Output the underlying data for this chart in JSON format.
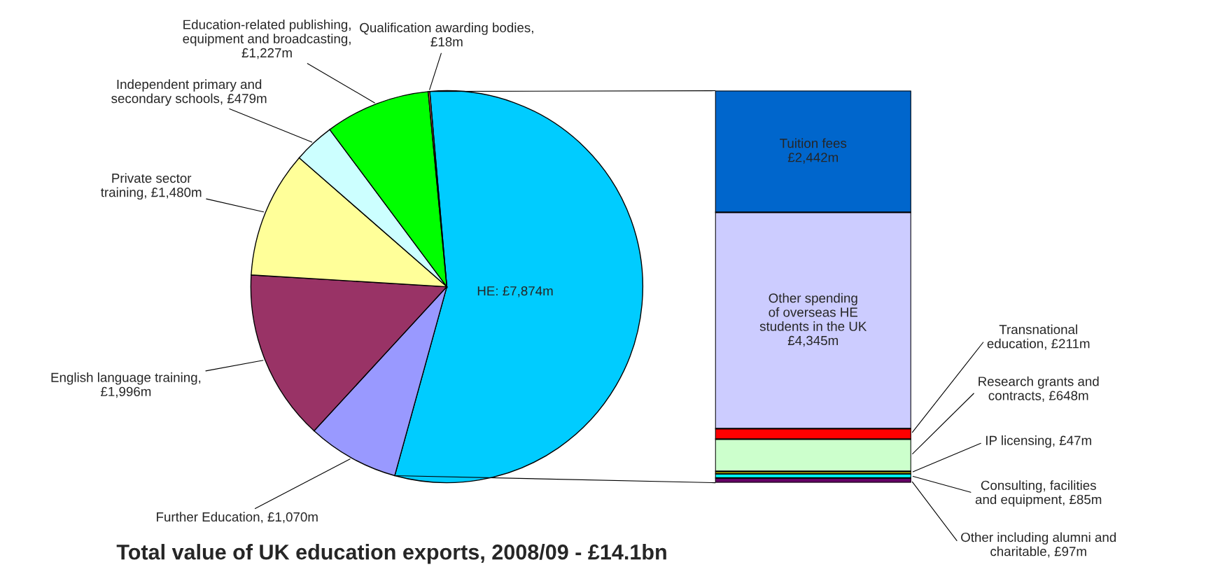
{
  "chart_data": [
    {
      "type": "pie",
      "title": "Total value of UK education exports, 2008/09 - £14.1bn",
      "categories": [
        "HE: £7,874m",
        "Further Education, £1,070m",
        "English language training,\n£1,996m",
        "Private sector\ntraining, £1,480m",
        "Independent primary and\nsecondary schools, £479m",
        "Education-related publishing,\nequipment and broadcasting,\n£1,227m",
        "Qualification awarding bodies,\n£18m"
      ],
      "values": [
        7874,
        1070,
        1996,
        1480,
        479,
        1227,
        18
      ],
      "colors": [
        "#00ccff",
        "#9999ff",
        "#993366",
        "#ffff99",
        "#ccffff",
        "#00ff00",
        "#ff8080"
      ]
    },
    {
      "type": "bar",
      "stacked": true,
      "categories": [
        null
      ],
      "series": [
        {
          "name": "Other including alumni and\ncharitable,",
          "color": "#660066",
          "values": [
            97
          ],
          "value_labels": [
            "£97m"
          ]
        },
        {
          "name": "Consulting, facilities\nand equipment,",
          "color": "#00ffff",
          "values": [
            85
          ],
          "value_labels": [
            "£85m"
          ]
        },
        {
          "name": "IP licensing,",
          "color": "#ffff00",
          "values": [
            47
          ],
          "value_labels": [
            "£47m"
          ]
        },
        {
          "name": "Research grants and\ncontracts,",
          "color": "#ccffcc",
          "values": [
            648
          ],
          "value_labels": [
            "£648m"
          ]
        },
        {
          "name": "Transnational\neducation,",
          "color": "#ff0000",
          "values": [
            211
          ],
          "value_labels": [
            "£211m"
          ]
        },
        {
          "name": "Other spending\nof overseas HE\nstudents in the UK",
          "color": "#ccccff",
          "values": [
            4345
          ],
          "value_labels": [
            "£4,345m"
          ]
        },
        {
          "name": "Tuition fees",
          "color": "#0066cc",
          "values": [
            2442
          ],
          "value_labels": [
            "£2,442m"
          ]
        }
      ]
    }
  ]
}
